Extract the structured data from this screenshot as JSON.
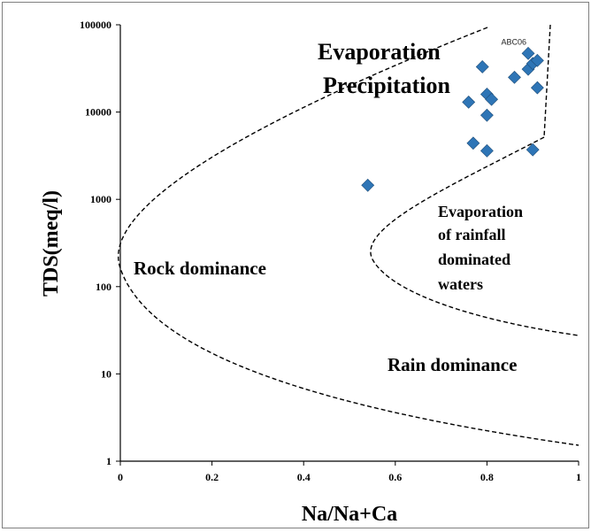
{
  "chart_data": {
    "type": "scatter",
    "title": "",
    "xlabel": "Na/Na+Ca",
    "ylabel": "TDS(meq/l)",
    "xlim": [
      0,
      1
    ],
    "ylim": [
      1,
      100000
    ],
    "y_scale": "log",
    "grid": false,
    "x_ticks": [
      "0",
      "0.2",
      "0.4",
      "0.6",
      "0.8",
      "1"
    ],
    "y_ticks": [
      "1",
      "10",
      "100",
      "1000",
      "10000",
      "100000"
    ],
    "marker_color": "#2e75b6",
    "points": [
      {
        "x": 0.54,
        "y": 1450,
        "label": ""
      },
      {
        "x": 0.76,
        "y": 13000,
        "label": ""
      },
      {
        "x": 0.77,
        "y": 4400,
        "label": ""
      },
      {
        "x": 0.79,
        "y": 33000,
        "label": ""
      },
      {
        "x": 0.8,
        "y": 3600,
        "label": ""
      },
      {
        "x": 0.8,
        "y": 9200,
        "label": ""
      },
      {
        "x": 0.8,
        "y": 16000,
        "label": ""
      },
      {
        "x": 0.81,
        "y": 14000,
        "label": ""
      },
      {
        "x": 0.86,
        "y": 25000,
        "label": ""
      },
      {
        "x": 0.89,
        "y": 47000,
        "label": "ABC06"
      },
      {
        "x": 0.89,
        "y": 31000,
        "label": ""
      },
      {
        "x": 0.9,
        "y": 3700,
        "label": ""
      },
      {
        "x": 0.9,
        "y": 36000,
        "label": ""
      },
      {
        "x": 0.91,
        "y": 39000,
        "label": ""
      },
      {
        "x": 0.91,
        "y": 19000,
        "label": ""
      }
    ],
    "regions": {
      "evaporation_line1": "Evaporation",
      "evaporation_line2": "Precipitation",
      "rock": "Rock dominance",
      "rainfall_line1": "Evaporation",
      "rainfall_line2": "of rainfall",
      "rainfall_line3": "dominated",
      "rainfall_line4": "waters",
      "rain": "Rain dominance"
    }
  }
}
